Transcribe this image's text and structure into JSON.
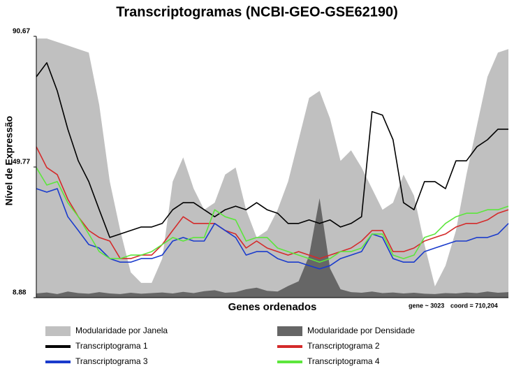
{
  "chart_data": {
    "type": "line",
    "title": "Transcriptogramas (NCBI-GEO-GSE62190)",
    "xlabel": "Genes ordenados",
    "ylabel": "Nível de Expressão",
    "annotations": [
      "gene ~ 3023",
      "coord = 710,204"
    ],
    "ylim": [
      8.88,
      90.67
    ],
    "yticks": [
      8.88,
      49.77,
      90.67
    ],
    "grid": false,
    "legend": "bottom",
    "series": [
      {
        "name": "Modularidade por Janela",
        "color": "#c0c0c0",
        "kind": "area",
        "values": [
          90.0,
          90.0,
          88.9,
          87.8,
          86.7,
          85.6,
          69.2,
          45.2,
          29.9,
          16.8,
          13.5,
          13.5,
          21.1,
          45.2,
          52.8,
          43.0,
          36.4,
          38.6,
          47.4,
          49.6,
          36.4,
          27.7,
          29.9,
          36.4,
          45.2,
          58.3,
          71.4,
          73.6,
          64.9,
          51.7,
          55.0,
          49.6,
          43.0,
          36.4,
          38.6,
          47.4,
          40.8,
          25.5,
          12.4,
          18.9,
          29.9,
          47.4,
          62.7,
          78.0,
          85.6,
          86.7
        ]
      },
      {
        "name": "Modularidade por Densidade",
        "color": "#666666",
        "kind": "area",
        "values": [
          10.2,
          10.5,
          10.0,
          10.8,
          10.3,
          10.1,
          10.6,
          10.2,
          10.0,
          10.4,
          10.1,
          10.3,
          10.5,
          10.2,
          10.7,
          10.3,
          10.9,
          11.2,
          10.4,
          10.6,
          11.5,
          12.0,
          11.0,
          10.8,
          12.5,
          14.0,
          22.0,
          40.0,
          18.0,
          11.5,
          10.6,
          10.4,
          10.8,
          10.3,
          10.5,
          10.2,
          10.4,
          10.1,
          10.0,
          10.3,
          10.2,
          10.5,
          10.3,
          10.8,
          10.4,
          10.6
        ]
      },
      {
        "name": "Transcriptograma 1",
        "color": "#000000",
        "kind": "line",
        "values": [
          78.0,
          82.4,
          73.6,
          61.6,
          51.7,
          45.2,
          36.4,
          27.7,
          28.8,
          29.9,
          31.0,
          31.0,
          32.1,
          36.4,
          38.6,
          38.6,
          36.4,
          34.2,
          36.4,
          37.5,
          36.4,
          38.6,
          36.4,
          35.3,
          32.1,
          32.1,
          33.2,
          32.1,
          33.2,
          31.0,
          32.1,
          34.2,
          67.1,
          66.0,
          58.3,
          38.6,
          36.4,
          45.2,
          45.2,
          43.0,
          51.7,
          51.7,
          56.1,
          58.3,
          61.6,
          61.6
        ]
      },
      {
        "name": "Transcriptograma 2",
        "color": "#d42a2a",
        "kind": "line",
        "values": [
          56.1,
          49.6,
          47.4,
          39.7,
          34.2,
          29.9,
          27.7,
          26.6,
          21.1,
          21.1,
          22.2,
          22.2,
          25.5,
          29.9,
          34.2,
          32.1,
          32.1,
          32.1,
          29.9,
          28.8,
          24.4,
          26.6,
          24.4,
          23.3,
          22.2,
          23.3,
          22.2,
          21.1,
          22.2,
          23.3,
          24.4,
          26.6,
          29.9,
          29.9,
          23.3,
          23.3,
          24.4,
          26.6,
          27.7,
          28.8,
          31.0,
          32.1,
          32.1,
          33.2,
          35.3,
          36.4
        ]
      },
      {
        "name": "Transcriptograma 3",
        "color": "#1a3bcc",
        "kind": "line",
        "values": [
          43.0,
          41.9,
          43.0,
          34.2,
          29.9,
          25.5,
          24.4,
          21.1,
          20.0,
          20.0,
          21.1,
          21.1,
          22.2,
          26.6,
          27.7,
          26.6,
          26.6,
          32.1,
          29.9,
          27.7,
          22.2,
          23.3,
          23.3,
          21.1,
          20.0,
          20.0,
          18.9,
          17.9,
          18.9,
          21.1,
          22.2,
          23.3,
          28.8,
          27.7,
          21.1,
          20.0,
          20.0,
          23.3,
          24.4,
          25.5,
          26.6,
          26.6,
          27.7,
          27.7,
          28.8,
          32.1
        ]
      },
      {
        "name": "Transcriptograma 4",
        "color": "#5ce63c",
        "kind": "line",
        "values": [
          49.6,
          44.1,
          45.2,
          38.6,
          34.2,
          28.8,
          23.3,
          21.1,
          21.1,
          22.2,
          22.2,
          23.3,
          25.5,
          27.7,
          26.6,
          27.7,
          27.7,
          36.4,
          34.2,
          33.2,
          26.6,
          27.7,
          27.7,
          24.4,
          23.3,
          22.2,
          21.1,
          20.0,
          21.1,
          23.3,
          23.3,
          24.4,
          28.8,
          28.8,
          22.2,
          21.1,
          22.2,
          27.7,
          28.8,
          32.1,
          34.2,
          35.3,
          35.3,
          36.4,
          36.4,
          37.5
        ]
      }
    ]
  }
}
